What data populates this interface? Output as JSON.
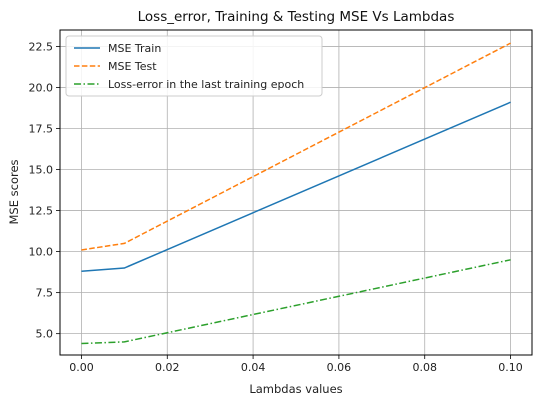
{
  "chart_data": {
    "type": "line",
    "title": "Loss_error, Training & Testing MSE Vs Lambdas",
    "xlabel": "Lambdas values",
    "ylabel": "MSE scores",
    "x": [
      0.0,
      0.01,
      0.1
    ],
    "xlim": [
      -0.005,
      0.105
    ],
    "ylim": [
      3.7,
      23.5
    ],
    "xticks": [
      0.0,
      0.02,
      0.04,
      0.06,
      0.08,
      0.1
    ],
    "xtick_labels": [
      "0.00",
      "0.02",
      "0.04",
      "0.06",
      "0.08",
      "0.10"
    ],
    "yticks": [
      5.0,
      7.5,
      10.0,
      12.5,
      15.0,
      17.5,
      20.0,
      22.5
    ],
    "ytick_labels": [
      "5.0",
      "7.5",
      "10.0",
      "12.5",
      "15.0",
      "17.5",
      "20.0",
      "22.5"
    ],
    "grid": true,
    "legend_position": "top-left",
    "series": [
      {
        "name": "MSE Train",
        "values": [
          8.8,
          9.0,
          19.1
        ],
        "color": "#1f77b4",
        "style": "solid"
      },
      {
        "name": "MSE Test",
        "values": [
          10.1,
          10.5,
          22.7
        ],
        "color": "#ff7f0e",
        "style": "dashed"
      },
      {
        "name": "Loss-error in the last training epoch",
        "values": [
          4.4,
          4.5,
          9.5
        ],
        "color": "#2ca02c",
        "style": "dashdot"
      }
    ]
  }
}
